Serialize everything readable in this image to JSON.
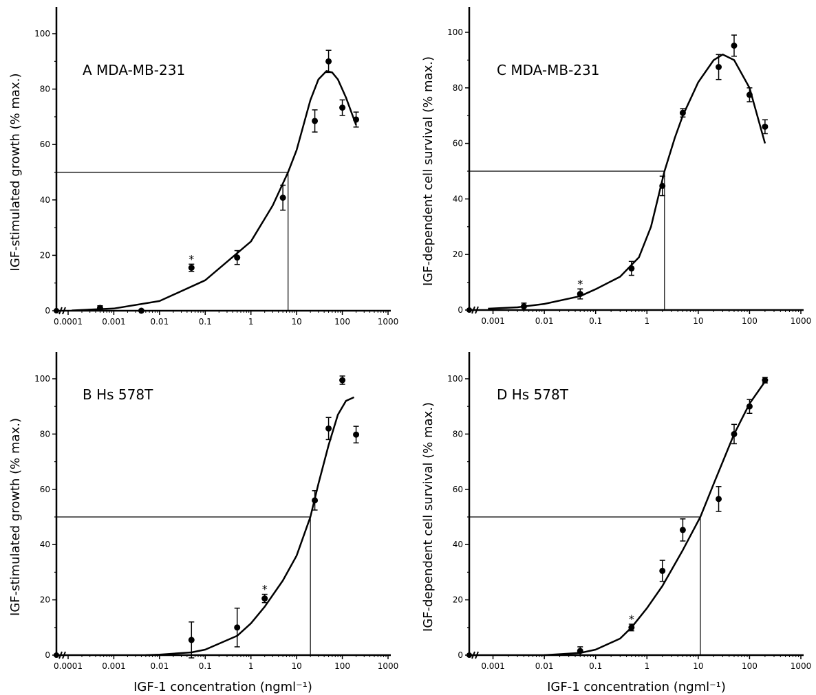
{
  "figure": {
    "x_axis_caption": "IGF-1 concentration (ngml⁻¹)"
  },
  "chart_data": [
    {
      "type": "scatter",
      "panel": "A",
      "title": "A  MDA-MB-231",
      "ylabel": "IGF-stimulated growth (% max.)",
      "xlabel": "",
      "xscale": "log",
      "xlim": [
        0.0001,
        1000
      ],
      "ylim": [
        0,
        100
      ],
      "x_ticks": [
        0.0001,
        0.001,
        0.01,
        0.1,
        1,
        10,
        100,
        1000
      ],
      "x_tick_labels": [
        "0.0001",
        "0.001",
        "0.01",
        "0.1",
        "1",
        "10",
        "100",
        "1000"
      ],
      "y_ticks": [
        0,
        20,
        40,
        60,
        80,
        100
      ],
      "y_tick_labels": [
        "0",
        "20",
        "40",
        "60",
        "80",
        "100"
      ],
      "zero_point": {
        "y": 0
      },
      "points": [
        {
          "x": 0.0005,
          "y": 1.0,
          "err": 0.8
        },
        {
          "x": 0.004,
          "y": 0.0,
          "err": 0
        },
        {
          "x": 0.05,
          "y": 15.5,
          "err": 1.3,
          "annotation": "*"
        },
        {
          "x": 0.5,
          "y": 19.2,
          "err": 2.5
        },
        {
          "x": 5,
          "y": 40.8,
          "err": 4.5
        },
        {
          "x": 25,
          "y": 68.5,
          "err": 4.0
        },
        {
          "x": 50,
          "y": 90.0,
          "err": 4.0
        },
        {
          "x": 100,
          "y": 73.3,
          "err": 2.8
        },
        {
          "x": 200,
          "y": 69.0,
          "err": 2.7
        }
      ],
      "fit_curve": [
        [
          0.00012,
          0.1
        ],
        [
          0.001,
          0.8
        ],
        [
          0.01,
          3.5
        ],
        [
          0.1,
          11.0
        ],
        [
          1,
          25.0
        ],
        [
          3,
          38.0
        ],
        [
          6.5,
          50.0
        ],
        [
          10,
          58.0
        ],
        [
          20,
          76.0
        ],
        [
          30,
          83.5
        ],
        [
          45,
          86.5
        ],
        [
          60,
          86.0
        ],
        [
          80,
          83.5
        ],
        [
          120,
          77.0
        ],
        [
          200,
          67.0
        ]
      ],
      "reference": {
        "x": 6.5,
        "y": 50
      }
    },
    {
      "type": "scatter",
      "panel": "B",
      "title": "B  Hs 578T",
      "ylabel": "IGF-stimulated growth (% max.)",
      "xlabel": "IGF-1 concentration (ngml⁻¹)",
      "xscale": "log",
      "xlim": [
        0.0001,
        1000
      ],
      "ylim": [
        0,
        100
      ],
      "x_ticks": [
        0.0001,
        0.001,
        0.01,
        0.1,
        1,
        10,
        100,
        1000
      ],
      "x_tick_labels": [
        "0.0001",
        "0.001",
        "0.01",
        "0.1",
        "1",
        "10",
        "100",
        "1000"
      ],
      "y_ticks": [
        0,
        20,
        40,
        60,
        80,
        100
      ],
      "y_tick_labels": [
        "0",
        "20",
        "40",
        "60",
        "80",
        "100"
      ],
      "zero_point": {
        "y": 0
      },
      "points": [
        {
          "x": 0.05,
          "y": 5.5,
          "err": 6.5
        },
        {
          "x": 0.5,
          "y": 10.0,
          "err": 7.0
        },
        {
          "x": 2,
          "y": 20.5,
          "err": 1.5,
          "annotation": "*"
        },
        {
          "x": 25,
          "y": 56.0,
          "err": 3.5
        },
        {
          "x": 50,
          "y": 82.0,
          "err": 4.0
        },
        {
          "x": 100,
          "y": 99.5,
          "err": 1.5
        },
        {
          "x": 200,
          "y": 79.8,
          "err": 3.0
        }
      ],
      "fit_curve": [
        [
          0.005,
          0.0
        ],
        [
          0.01,
          0.2
        ],
        [
          0.05,
          1.0
        ],
        [
          0.1,
          2.0
        ],
        [
          0.5,
          7.0
        ],
        [
          1,
          11.5
        ],
        [
          2,
          17.5
        ],
        [
          5,
          27.0
        ],
        [
          10,
          36.0
        ],
        [
          20,
          50.0
        ],
        [
          30,
          62.0
        ],
        [
          50,
          76.0
        ],
        [
          80,
          87.0
        ],
        [
          120,
          92.0
        ],
        [
          180,
          93.3
        ]
      ],
      "reference": {
        "x": 20,
        "y": 50
      }
    },
    {
      "type": "scatter",
      "panel": "C",
      "title": "C  MDA-MB-231",
      "ylabel": "IGF-dependent cell survival (% max.)",
      "xlabel": "",
      "xscale": "log",
      "xlim": [
        0.0006,
        1000
      ],
      "ylim": [
        0,
        100
      ],
      "x_ticks": [
        0.001,
        0.01,
        0.1,
        1,
        10,
        100,
        1000
      ],
      "x_tick_labels": [
        "0.001",
        "0.01",
        "0.1",
        "1",
        "10",
        "100",
        "1000"
      ],
      "y_ticks": [
        0,
        20,
        40,
        60,
        80,
        100
      ],
      "y_tick_labels": [
        "0",
        "20",
        "40",
        "60",
        "80",
        "100"
      ],
      "zero_point": {
        "y": 0
      },
      "points": [
        {
          "x": 0.004,
          "y": 1.3,
          "err": 1.2
        },
        {
          "x": 0.05,
          "y": 5.8,
          "err": 1.8,
          "annotation": "*"
        },
        {
          "x": 0.5,
          "y": 15.0,
          "err": 2.5
        },
        {
          "x": 2,
          "y": 44.7,
          "err": 3.5
        },
        {
          "x": 5,
          "y": 71.0,
          "err": 1.5
        },
        {
          "x": 25,
          "y": 87.5,
          "err": 4.5
        },
        {
          "x": 50,
          "y": 95.2,
          "err": 3.8
        },
        {
          "x": 100,
          "y": 77.5,
          "err": 2.5
        },
        {
          "x": 200,
          "y": 66.0,
          "err": 2.5
        }
      ],
      "fit_curve": [
        [
          0.0008,
          0.5
        ],
        [
          0.003,
          1.0
        ],
        [
          0.01,
          2.2
        ],
        [
          0.05,
          5.0
        ],
        [
          0.1,
          7.5
        ],
        [
          0.3,
          12.0
        ],
        [
          0.7,
          19.0
        ],
        [
          1.2,
          30.0
        ],
        [
          2.2,
          50.0
        ],
        [
          3.5,
          62.0
        ],
        [
          5,
          70.0
        ],
        [
          10,
          82.0
        ],
        [
          20,
          90.0
        ],
        [
          30,
          92.0
        ],
        [
          50,
          90.0
        ],
        [
          100,
          80.0
        ],
        [
          200,
          60.0
        ]
      ],
      "reference": {
        "x": 2.2,
        "y": 50
      }
    },
    {
      "type": "scatter",
      "panel": "D",
      "title": "D  Hs 578T",
      "ylabel": "IGF-dependent cell survival (% max.)",
      "xlabel": "IGF-1 concentration (ngml⁻¹)",
      "xscale": "log",
      "xlim": [
        0.0006,
        1000
      ],
      "ylim": [
        0,
        100
      ],
      "x_ticks": [
        0.001,
        0.01,
        0.1,
        1,
        10,
        100,
        1000
      ],
      "x_tick_labels": [
        "0.001",
        "0.01",
        "0.1",
        "1",
        "10",
        "100",
        "1000"
      ],
      "y_ticks": [
        0,
        20,
        40,
        60,
        80,
        100
      ],
      "y_tick_labels": [
        "0",
        "20",
        "40",
        "60",
        "80",
        "100"
      ],
      "zero_point": {
        "y": 0
      },
      "points": [
        {
          "x": 0.05,
          "y": 1.5,
          "err": 1.5
        },
        {
          "x": 0.5,
          "y": 10.0,
          "err": 1.2,
          "annotation": "*"
        },
        {
          "x": 2,
          "y": 30.5,
          "err": 3.8
        },
        {
          "x": 5,
          "y": 45.3,
          "err": 4.0
        },
        {
          "x": 25,
          "y": 56.5,
          "err": 4.5
        },
        {
          "x": 50,
          "y": 80.0,
          "err": 3.5
        },
        {
          "x": 100,
          "y": 90.0,
          "err": 2.5
        },
        {
          "x": 200,
          "y": 99.5,
          "err": 1.0
        }
      ],
      "fit_curve": [
        [
          0.01,
          0.0
        ],
        [
          0.05,
          0.8
        ],
        [
          0.1,
          2.0
        ],
        [
          0.3,
          6.0
        ],
        [
          0.5,
          10.0
        ],
        [
          1,
          17.0
        ],
        [
          2,
          25.0
        ],
        [
          5,
          38.0
        ],
        [
          11,
          50.0
        ],
        [
          20,
          62.0
        ],
        [
          50,
          80.0
        ],
        [
          100,
          91.0
        ],
        [
          200,
          99.0
        ]
      ],
      "reference": {
        "x": 11,
        "y": 50
      }
    }
  ]
}
